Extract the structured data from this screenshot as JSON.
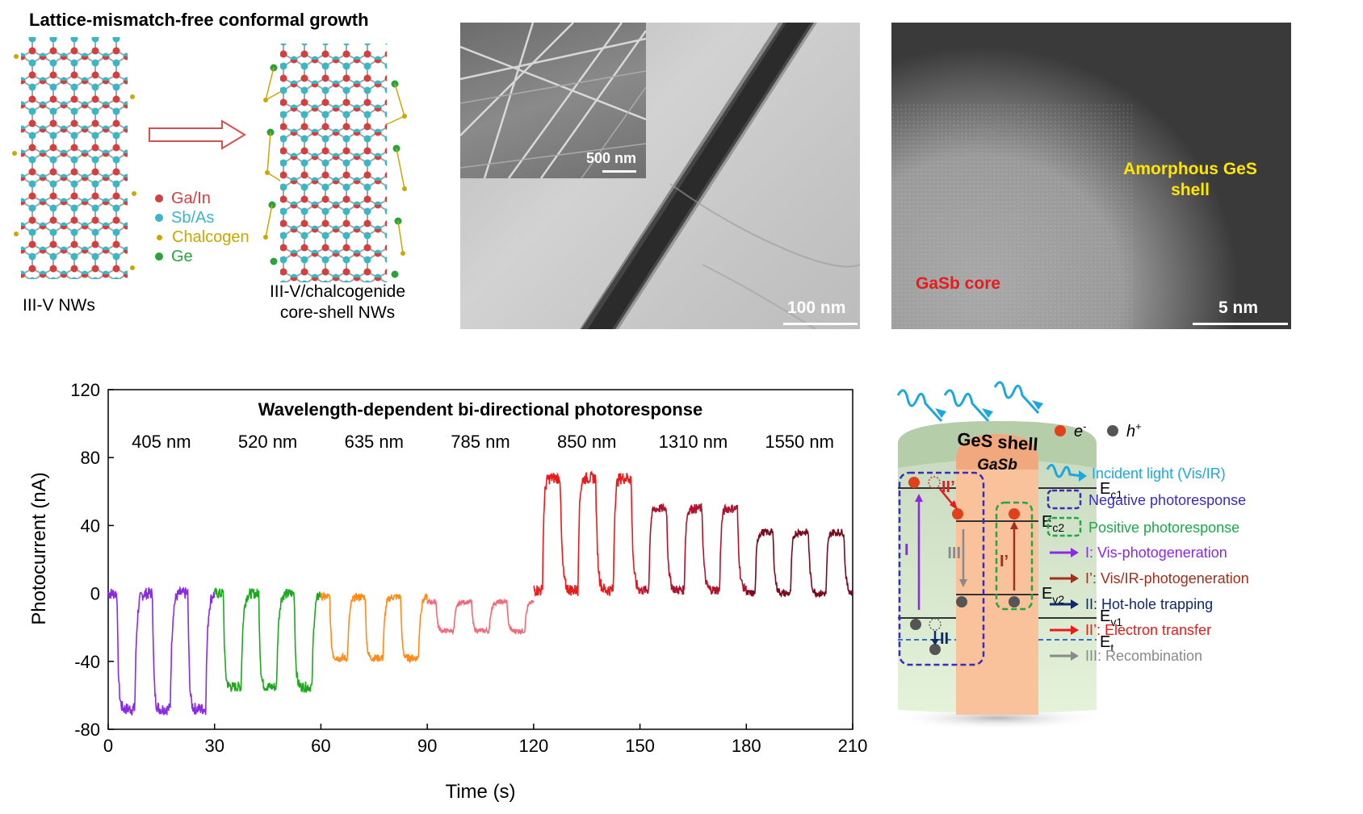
{
  "panel_a": {
    "title": "Lattice-mismatch-free conformal growth",
    "left_caption": "III-V  NWs",
    "right_caption_line1": "III-V/chalcogenide",
    "right_caption_line2": "core-shell NWs",
    "atoms": [
      {
        "label": "Ga/In",
        "color": "#d44040"
      },
      {
        "label": "Sb/As",
        "color": "#3bb6c4"
      },
      {
        "label": "Chalcogen",
        "color": "#c9a800"
      },
      {
        "label": "Ge",
        "color": "#2aa33a"
      }
    ]
  },
  "panel_b": {
    "inset_scale_label": "500 nm",
    "main_scale_label": "100 nm"
  },
  "panel_c": {
    "shell_label_line1": "Amorphous GeS",
    "shell_label_line2": "shell",
    "core_label": "GaSb core",
    "scale_label": "5 nm"
  },
  "chart_data": {
    "type": "line",
    "title": "Wavelength-dependent bi-directional photoresponse",
    "xlabel": "Time (s)",
    "ylabel": "Photocurrent  (nA)",
    "xlim": [
      0,
      210
    ],
    "ylim": [
      -80,
      120
    ],
    "xticks": [
      0,
      30,
      60,
      90,
      120,
      150,
      180,
      210
    ],
    "yticks": [
      -80,
      -40,
      0,
      40,
      80,
      120
    ],
    "segments": [
      {
        "wavelength": "405 nm",
        "t_start": 0,
        "t_end": 30,
        "baseline": 0,
        "on_level": -68,
        "color": "#8a2be2"
      },
      {
        "wavelength": "520 nm",
        "t_start": 30,
        "t_end": 60,
        "baseline": 0,
        "on_level": -55,
        "color": "#1fa81f"
      },
      {
        "wavelength": "635 nm",
        "t_start": 60,
        "t_end": 90,
        "baseline": -2,
        "on_level": -38,
        "color": "#ff8c1a"
      },
      {
        "wavelength": "785 nm",
        "t_start": 90,
        "t_end": 120,
        "baseline": -5,
        "on_level": -22,
        "color": "#f06a7a"
      },
      {
        "wavelength": "850 nm",
        "t_start": 120,
        "t_end": 150,
        "baseline": 2,
        "on_level": 68,
        "color": "#e81c1c"
      },
      {
        "wavelength": "1310 nm",
        "t_start": 150,
        "t_end": 180,
        "baseline": 2,
        "on_level": 50,
        "color": "#b0132e"
      },
      {
        "wavelength": "1550 nm",
        "t_start": 180,
        "t_end": 210,
        "baseline": 0,
        "on_level": 36,
        "color": "#7a0a1e"
      }
    ],
    "pulses_per_segment": 3,
    "pulse_period_s": 10,
    "pulse_on_s": 5
  },
  "panel_e": {
    "shell_label": "GeS  shell",
    "core_label": "GaSb",
    "levels": {
      "ec1": "E",
      "ec1_sub": "c1",
      "ec2": "E",
      "ec2_sub": "c2",
      "ev2": "E",
      "ev2_sub": "v2",
      "ev1": "E",
      "ev1_sub": "v1",
      "et": "E",
      "et_sub": "t"
    },
    "arrows_in_diagram": {
      "I": "I",
      "II": "II",
      "II_prime": "II’",
      "III": "III",
      "I_prime": "I’"
    },
    "legend": {
      "electron": "e",
      "electron_sup": "-",
      "hole": "h",
      "hole_sup": "+",
      "incident": "Incident light (Vis/IR)",
      "negative": "Negative photoresponse",
      "positive": "Positive photoresponse",
      "p1": "I: Vis-photogeneration",
      "p1p": "I’: Vis/IR-photogeneration",
      "p2": "II: Hot-hole trapping",
      "p2p": "II’: Electron transfer",
      "p3": "III: Recombination"
    },
    "colors": {
      "incident": "#1ea7dc",
      "negative": "#3a2dbd",
      "positive": "#1fa84a",
      "p1": "#8a2be2",
      "p1p": "#a0301a",
      "p2": "#0f2a6b",
      "p2p": "#e81c1c",
      "p3": "#8a8a8a"
    }
  }
}
